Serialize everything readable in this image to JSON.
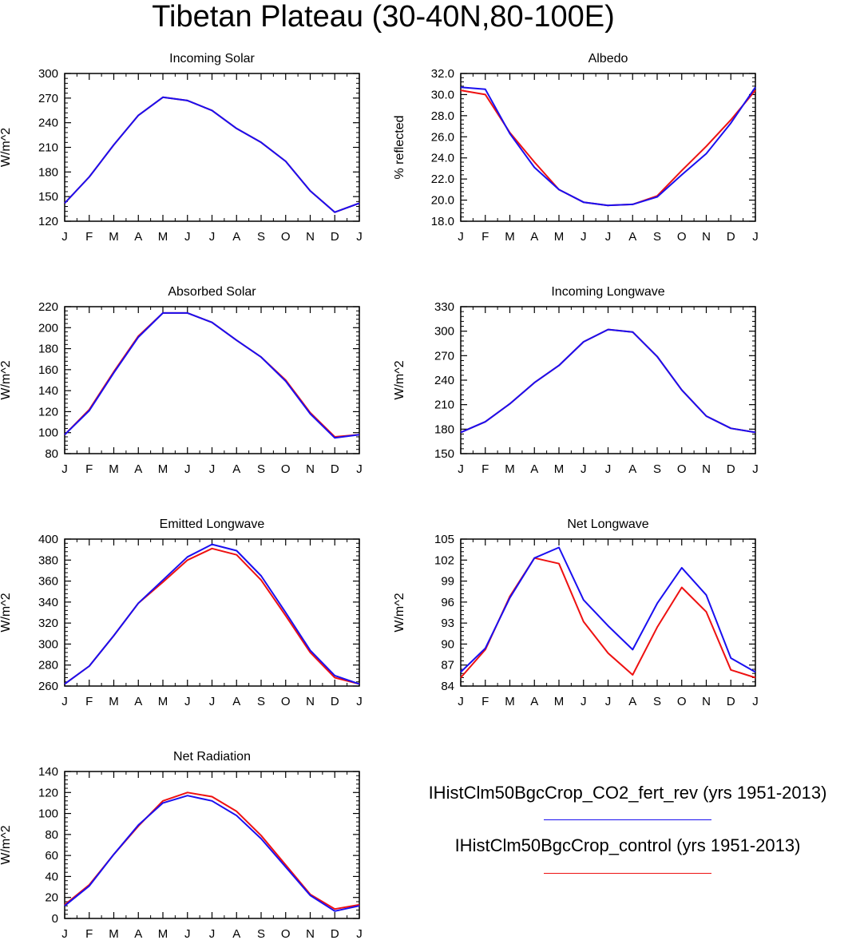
{
  "title": "Tibetan Plateau (30-40N,80-100E)",
  "legend": [
    {
      "label": "IHistClm50BgcCrop_CO2_fert_rev (yrs 1951-2013)",
      "color": "#1a0ff0"
    },
    {
      "label": "IHistClm50BgcCrop_control (yrs 1951-2013)",
      "color": "#ee1111"
    }
  ],
  "chart_data": [
    {
      "type": "line",
      "title": "Incoming Solar",
      "ylabel": "W/m^2",
      "categories": [
        "J",
        "F",
        "M",
        "A",
        "M",
        "J",
        "J",
        "A",
        "S",
        "O",
        "N",
        "D",
        "J"
      ],
      "ylim": [
        120,
        300
      ],
      "yticks": [
        "120",
        "150",
        "180",
        "210",
        "240",
        "270",
        "300"
      ],
      "series": [
        {
          "color": "#ee1111",
          "values": [
            142,
            174,
            213,
            249,
            271,
            267,
            255,
            233,
            216,
            193,
            157,
            131,
            142
          ]
        },
        {
          "color": "#1a0ff0",
          "values": [
            142,
            174,
            213,
            249,
            271,
            267,
            255,
            233,
            216,
            193,
            157,
            131,
            142
          ]
        }
      ]
    },
    {
      "type": "line",
      "title": "Albedo",
      "ylabel": "% reflected",
      "categories": [
        "J",
        "F",
        "M",
        "A",
        "M",
        "J",
        "J",
        "A",
        "S",
        "O",
        "N",
        "D",
        "J"
      ],
      "ylim": [
        18,
        32
      ],
      "yticks": [
        "18.0",
        "20.0",
        "22.0",
        "24.0",
        "26.0",
        "28.0",
        "30.0",
        "32.0"
      ],
      "series": [
        {
          "color": "#ee1111",
          "values": [
            30.4,
            30.0,
            26.4,
            23.6,
            21.0,
            19.8,
            19.5,
            19.6,
            20.4,
            22.8,
            25.1,
            27.6,
            30.4
          ]
        },
        {
          "color": "#1a0ff0",
          "values": [
            30.7,
            30.5,
            26.3,
            23.1,
            21.0,
            19.8,
            19.5,
            19.6,
            20.3,
            22.4,
            24.4,
            27.3,
            30.7
          ]
        }
      ]
    },
    {
      "type": "line",
      "title": "Absorbed Solar",
      "ylabel": "W/m^2",
      "categories": [
        "J",
        "F",
        "M",
        "A",
        "M",
        "J",
        "J",
        "A",
        "S",
        "O",
        "N",
        "D",
        "J"
      ],
      "ylim": [
        80,
        220
      ],
      "yticks": [
        "80",
        "100",
        "120",
        "140",
        "160",
        "180",
        "200",
        "220"
      ],
      "series": [
        {
          "color": "#ee1111",
          "values": [
            98,
            122,
            158,
            192,
            214,
            214,
            205,
            188,
            172,
            150,
            119,
            96,
            98
          ]
        },
        {
          "color": "#1a0ff0",
          "values": [
            98,
            121,
            157,
            191,
            214,
            214,
            205,
            188,
            172,
            149,
            118,
            95,
            98
          ]
        }
      ]
    },
    {
      "type": "line",
      "title": "Incoming Longwave",
      "ylabel": "W/m^2",
      "categories": [
        "J",
        "F",
        "M",
        "A",
        "M",
        "J",
        "J",
        "A",
        "S",
        "O",
        "N",
        "D",
        "J"
      ],
      "ylim": [
        150,
        330
      ],
      "yticks": [
        "150",
        "180",
        "210",
        "240",
        "270",
        "300",
        "330"
      ],
      "series": [
        {
          "color": "#ee1111",
          "values": [
            176,
            189,
            211,
            237,
            258,
            287,
            302,
            299,
            269,
            228,
            196,
            181,
            176
          ]
        },
        {
          "color": "#1a0ff0",
          "values": [
            176,
            189,
            211,
            237,
            258,
            287,
            302,
            299,
            269,
            228,
            196,
            181,
            176
          ]
        }
      ]
    },
    {
      "type": "line",
      "title": "Emitted Longwave",
      "ylabel": "W/m^2",
      "categories": [
        "J",
        "F",
        "M",
        "A",
        "M",
        "J",
        "J",
        "A",
        "S",
        "O",
        "N",
        "D",
        "J"
      ],
      "ylim": [
        260,
        400
      ],
      "yticks": [
        "260",
        "280",
        "300",
        "320",
        "340",
        "360",
        "380",
        "400"
      ],
      "series": [
        {
          "color": "#ee1111",
          "values": [
            262,
            279,
            308,
            339,
            359,
            380,
            391,
            385,
            361,
            327,
            292,
            268,
            262
          ]
        },
        {
          "color": "#1a0ff0",
          "values": [
            262,
            279,
            308,
            339,
            361,
            383,
            395,
            389,
            365,
            330,
            294,
            270,
            262
          ]
        }
      ]
    },
    {
      "type": "line",
      "title": "Net Longwave",
      "ylabel": "W/m^2",
      "categories": [
        "J",
        "F",
        "M",
        "A",
        "M",
        "J",
        "J",
        "A",
        "S",
        "O",
        "N",
        "D",
        "J"
      ],
      "ylim": [
        84,
        105
      ],
      "yticks": [
        "84",
        "87",
        "90",
        "93",
        "96",
        "99",
        "102",
        "105"
      ],
      "series": [
        {
          "color": "#ee1111",
          "values": [
            85.2,
            89.2,
            96.8,
            102.3,
            101.5,
            93.2,
            88.7,
            85.6,
            92.4,
            98.1,
            94.6,
            86.3,
            85.2
          ]
        },
        {
          "color": "#1a0ff0",
          "values": [
            86.0,
            89.4,
            96.6,
            102.3,
            103.8,
            96.3,
            92.6,
            89.2,
            95.8,
            100.9,
            97.0,
            88.0,
            86.0
          ]
        }
      ]
    },
    {
      "type": "line",
      "title": "Net Radiation",
      "ylabel": "W/m^2",
      "categories": [
        "J",
        "F",
        "M",
        "A",
        "M",
        "J",
        "J",
        "A",
        "S",
        "O",
        "N",
        "D",
        "J"
      ],
      "ylim": [
        0,
        140
      ],
      "yticks": [
        "0",
        "20",
        "40",
        "60",
        "80",
        "100",
        "120",
        "140"
      ],
      "series": [
        {
          "color": "#ee1111",
          "values": [
            13,
            32,
            61,
            88,
            112,
            120,
            116,
            102,
            79,
            51,
            23,
            9,
            13
          ]
        },
        {
          "color": "#1a0ff0",
          "values": [
            12,
            31,
            61,
            89,
            110,
            117,
            112,
            98,
            76,
            49,
            22,
            7,
            12
          ]
        }
      ]
    }
  ]
}
